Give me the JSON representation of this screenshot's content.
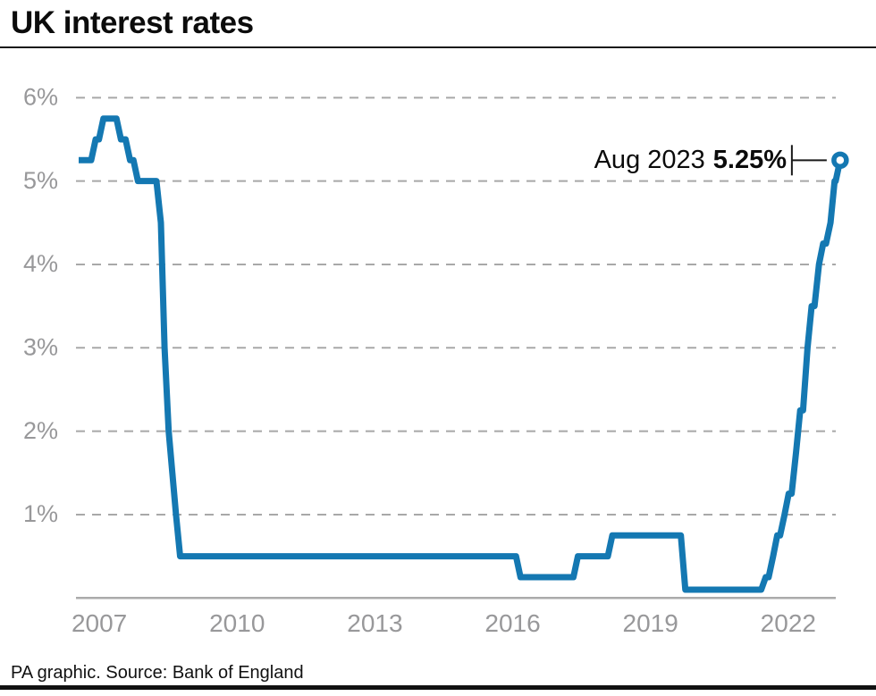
{
  "title": "UK interest rates",
  "footer": "PA graphic. Source: Bank of England",
  "annotation": {
    "label": "Aug 2023",
    "value": "5.25%"
  },
  "colors": {
    "line": "#1478b2",
    "grid": "#a8a8a8",
    "axis_label": "#98989a",
    "axis_line": "#ababab",
    "text": "#0b0b0b",
    "marker_fill": "#ffffff"
  },
  "chart_data": {
    "type": "line",
    "title": "UK interest rates",
    "xlabel": "",
    "ylabel": "",
    "grid": "dashed-horizontal",
    "legend": "none",
    "x_range": [
      2007,
      2023.7
    ],
    "y_range": [
      0,
      6.4
    ],
    "x_tick_years": [
      2007,
      2010,
      2013,
      2016,
      2019,
      2022
    ],
    "x_tick_labels": [
      "2007",
      "2010",
      "2013",
      "2016",
      "2019",
      "2022"
    ],
    "y_ticks": [
      {
        "value": 1,
        "label": "1%"
      },
      {
        "value": 2,
        "label": "2%"
      },
      {
        "value": 3,
        "label": "3%"
      },
      {
        "value": 4,
        "label": "4%"
      },
      {
        "value": 5,
        "label": "5%"
      },
      {
        "value": 6,
        "label": "6%"
      }
    ],
    "series": [
      {
        "name": "Bank of England base rate",
        "step": true,
        "points": [
          {
            "date": "Jan 2007",
            "t": 2007.0,
            "rate": 5.25
          },
          {
            "date": "May 2007",
            "t": 2007.37,
            "rate": 5.5
          },
          {
            "date": "Jul 2007",
            "t": 2007.54,
            "rate": 5.75
          },
          {
            "date": "Dec 2007",
            "t": 2007.92,
            "rate": 5.5
          },
          {
            "date": "Feb 2008",
            "t": 2008.12,
            "rate": 5.25
          },
          {
            "date": "Apr 2008",
            "t": 2008.29,
            "rate": 5.0
          },
          {
            "date": "Oct 2008",
            "t": 2008.79,
            "rate": 4.5
          },
          {
            "date": "Nov 2008",
            "t": 2008.87,
            "rate": 3.0
          },
          {
            "date": "Dec 2008",
            "t": 2008.96,
            "rate": 2.0
          },
          {
            "date": "Jan 2009",
            "t": 2009.04,
            "rate": 1.5
          },
          {
            "date": "Feb 2009",
            "t": 2009.12,
            "rate": 1.0
          },
          {
            "date": "Mar 2009",
            "t": 2009.21,
            "rate": 0.5
          },
          {
            "date": "Aug 2016",
            "t": 2016.62,
            "rate": 0.25
          },
          {
            "date": "Nov 2017",
            "t": 2017.87,
            "rate": 0.5
          },
          {
            "date": "Aug 2018",
            "t": 2018.62,
            "rate": 0.75
          },
          {
            "date": "Mar 2020",
            "t": 2020.21,
            "rate": 0.1
          },
          {
            "date": "Dec 2021",
            "t": 2021.96,
            "rate": 0.25
          },
          {
            "date": "Feb 2022",
            "t": 2022.12,
            "rate": 0.5
          },
          {
            "date": "Mar 2022",
            "t": 2022.21,
            "rate": 0.75
          },
          {
            "date": "May 2022",
            "t": 2022.37,
            "rate": 1.0
          },
          {
            "date": "Jun 2022",
            "t": 2022.46,
            "rate": 1.25
          },
          {
            "date": "Aug 2022",
            "t": 2022.62,
            "rate": 1.75
          },
          {
            "date": "Sep 2022",
            "t": 2022.71,
            "rate": 2.25
          },
          {
            "date": "Nov 2022",
            "t": 2022.87,
            "rate": 3.0
          },
          {
            "date": "Dec 2022",
            "t": 2022.96,
            "rate": 3.5
          },
          {
            "date": "Feb 2023",
            "t": 2023.12,
            "rate": 4.0
          },
          {
            "date": "Mar 2023",
            "t": 2023.21,
            "rate": 4.25
          },
          {
            "date": "May 2023",
            "t": 2023.37,
            "rate": 4.5
          },
          {
            "date": "Jun 2023",
            "t": 2023.46,
            "rate": 5.0
          },
          {
            "date": "Aug 2023",
            "t": 2023.58,
            "rate": 5.25
          }
        ]
      }
    ],
    "end_marker": {
      "date": "Aug 2023",
      "t": 2023.58,
      "rate": 5.25
    }
  }
}
